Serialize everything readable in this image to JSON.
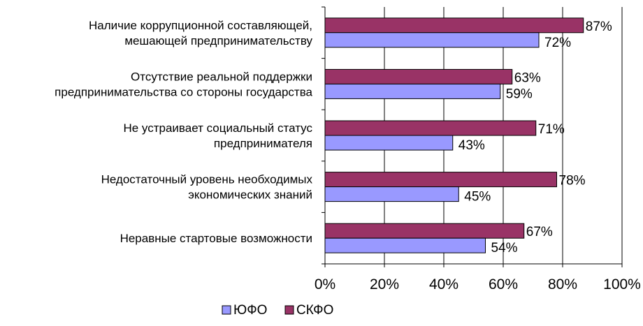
{
  "chart_data": {
    "type": "bar",
    "orientation": "horizontal",
    "categories": [
      [
        "Наличие коррупционной составляющей,",
        "мешающей предпринимательству"
      ],
      [
        "Отсутствие реальной поддержки",
        "предпринимательства со стороны государства"
      ],
      [
        "Не устраивает социальный статус",
        "предпринимателя"
      ],
      [
        "Недостаточный уровень необходимых",
        "экономических знаний"
      ],
      [
        "Неравные стартовые возможности"
      ]
    ],
    "series": [
      {
        "name": "ЮФО",
        "color": "#9999ff",
        "values": [
          72,
          59,
          43,
          45,
          54
        ]
      },
      {
        "name": "СКФО",
        "color": "#993366",
        "values": [
          87,
          63,
          71,
          78,
          67
        ]
      }
    ],
    "data_labels": {
      "ЮФО": [
        "72%",
        "59%",
        "43%",
        "45%",
        "54%"
      ],
      "СКФО": [
        "87%",
        "63%",
        "71%",
        "78%",
        "67%"
      ]
    },
    "x_ticks": [
      "0%",
      "20%",
      "40%",
      "60%",
      "80%",
      "100%"
    ],
    "xlim": [
      0,
      100
    ],
    "grid": true,
    "legend": {
      "placement": "bottom"
    },
    "title": "",
    "xlabel": "",
    "ylabel": ""
  }
}
